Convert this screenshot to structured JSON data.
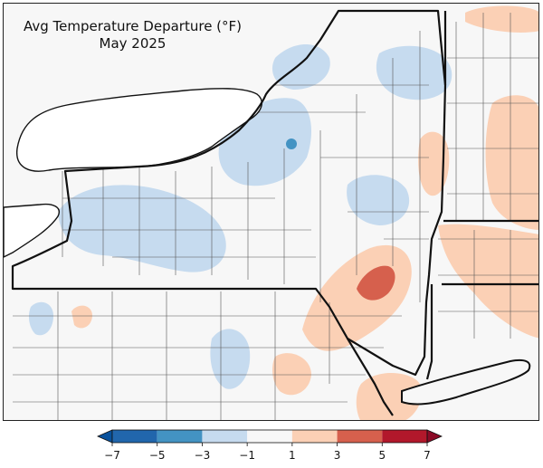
{
  "map": {
    "title_line1": "Avg Temperature Departure (°F)",
    "title_line2": "May 2025",
    "region": "New York State and surrounding areas",
    "units": "°F"
  },
  "legend": {
    "ticks": [
      "−7",
      "−5",
      "−3",
      "−1",
      "1",
      "3",
      "5",
      "7"
    ],
    "bins": [
      {
        "from": -7,
        "to": -5,
        "color": "#2166ac"
      },
      {
        "from": -5,
        "to": -3,
        "color": "#4393c3"
      },
      {
        "from": -3,
        "to": -1,
        "color": "#c6dbef"
      },
      {
        "from": -1,
        "to": 1,
        "color": "#f7f7f7"
      },
      {
        "from": 1,
        "to": 3,
        "color": "#fbd0b5"
      },
      {
        "from": 3,
        "to": 5,
        "color": "#d6604d"
      },
      {
        "from": 5,
        "to": 7,
        "color": "#b2182b"
      }
    ],
    "under_color": "#08519c",
    "over_color": "#8b0a26"
  },
  "colors": {
    "background": "#f7f7f7",
    "lake": "#ffffff",
    "state_border": "#111111",
    "county_border": "#555555",
    "cool_anomaly": "#c6dbef",
    "warm_anomaly": "#fbd0b5",
    "hot_anomaly": "#d6604d"
  }
}
